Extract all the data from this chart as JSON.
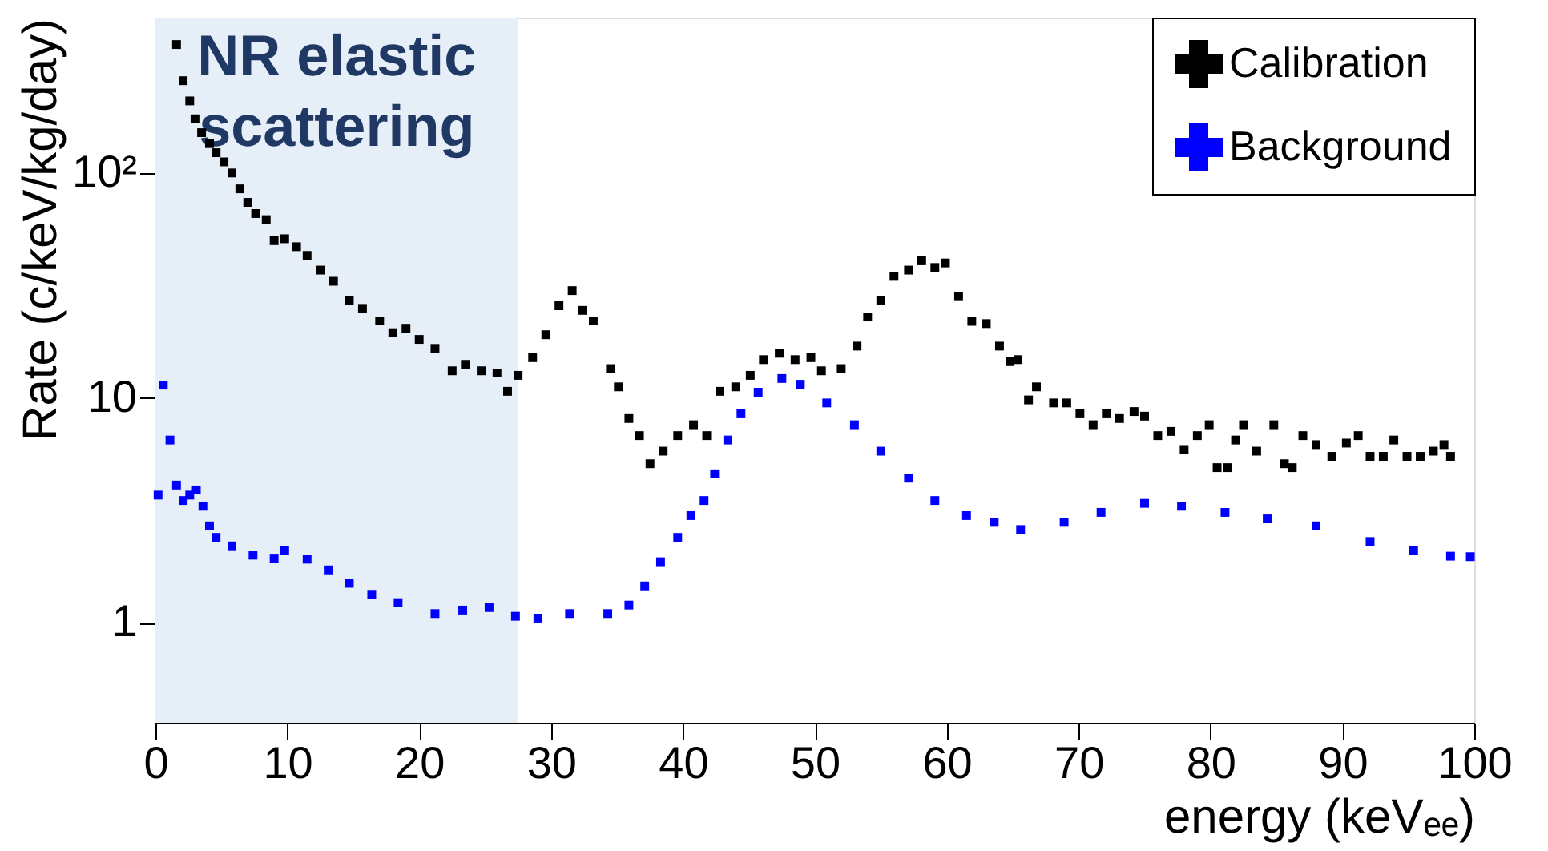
{
  "chart_data": {
    "type": "scatter",
    "xlabel": "energy (keVₑₑ)",
    "ylabel": "Rate (c/keV/kg/day)",
    "xlim": [
      0,
      100
    ],
    "xticks": [
      0,
      10,
      20,
      30,
      40,
      50,
      60,
      70,
      80,
      90,
      100
    ],
    "ylim": [
      0.36,
      490
    ],
    "yticks": [
      1,
      10,
      {
        "value": 100,
        "label": "10²"
      }
    ],
    "log": "y",
    "grid": false,
    "legend": "top right",
    "marker": "square",
    "bands": [
      {
        "axis": "x",
        "from": 0,
        "to": 27.5,
        "label": "NR elastic\nscattering",
        "color": "#e6eef8"
      }
    ],
    "series": [
      {
        "name": "Calibration",
        "color": "#000000",
        "x": [
          1.6,
          2.1,
          2.6,
          3.0,
          3.5,
          4.1,
          4.6,
          5.2,
          5.8,
          6.4,
          7.0,
          7.6,
          8.4,
          9.0,
          9.8,
          10.7,
          11.5,
          12.5,
          13.5,
          14.7,
          15.7,
          17.0,
          18.0,
          19.0,
          20.0,
          21.2,
          22.5,
          23.5,
          24.7,
          25.9,
          26.7,
          27.5,
          28.6,
          29.6,
          30.6,
          31.6,
          32.4,
          33.2,
          34.5,
          35.1,
          35.9,
          36.7,
          37.5,
          38.5,
          39.6,
          40.8,
          41.8,
          42.8,
          44.0,
          45.1,
          46.1,
          47.3,
          48.5,
          49.7,
          50.5,
          52.0,
          53.2,
          54.0,
          55.0,
          56.0,
          57.1,
          58.1,
          59.1,
          59.9,
          60.9,
          61.9,
          63.0,
          64.0,
          64.8,
          65.4,
          66.2,
          66.8,
          68.1,
          69.1,
          70.1,
          71.1,
          72.1,
          73.1,
          74.2,
          75.0,
          76.0,
          77.0,
          78.0,
          79.0,
          79.9,
          80.5,
          81.3,
          81.9,
          82.5,
          83.5,
          84.8,
          85.6,
          86.2,
          87.0,
          88.0,
          89.2,
          90.3,
          91.2,
          92.1,
          93.1,
          93.9,
          94.9,
          95.9,
          96.9,
          97.7,
          98.2
        ],
        "values": [
          372,
          257,
          209,
          174,
          151,
          135,
          123,
          112,
          100,
          85,
          74,
          66,
          62,
          50,
          51,
          47,
          43,
          37,
          33,
          27,
          25,
          22,
          19.5,
          20.4,
          18.2,
          16.6,
          13.2,
          14.1,
          13.2,
          12.9,
          10.7,
          12.6,
          15.1,
          19.1,
          25.7,
          30,
          24.5,
          22,
          13.5,
          11.2,
          8.1,
          6.8,
          5.1,
          5.8,
          6.8,
          7.6,
          6.8,
          10.7,
          11.2,
          12.6,
          14.8,
          15.8,
          14.8,
          15.1,
          13.2,
          13.5,
          17,
          22.9,
          27,
          34.7,
          37,
          40.7,
          38,
          39.8,
          28.2,
          21.9,
          21.4,
          17,
          14.5,
          14.8,
          9.8,
          11.2,
          9.5,
          9.5,
          8.5,
          7.6,
          8.5,
          8.1,
          8.7,
          8.3,
          6.8,
          7.1,
          5.9,
          6.8,
          7.6,
          4.9,
          4.9,
          6.5,
          7.6,
          5.8,
          7.6,
          5.1,
          4.9,
          6.8,
          6.2,
          5.5,
          6.3,
          6.8,
          5.5,
          5.5,
          6.5,
          5.5,
          5.5,
          5.8,
          6.2,
          5.5
        ]
      },
      {
        "name": "Background",
        "color": "#0000ff",
        "x": [
          0.2,
          0.6,
          1.1,
          1.6,
          2.1,
          2.6,
          3.1,
          3.6,
          4.1,
          4.6,
          5.8,
          7.4,
          9.0,
          9.8,
          11.5,
          13.1,
          14.7,
          16.4,
          18.4,
          21.2,
          23.3,
          25.3,
          27.3,
          29.0,
          31.4,
          34.3,
          35.9,
          37.1,
          38.3,
          39.6,
          40.6,
          41.6,
          42.4,
          43.4,
          44.4,
          45.7,
          47.5,
          48.9,
          50.9,
          53.0,
          55.0,
          57.1,
          59.1,
          61.5,
          63.6,
          65.6,
          68.9,
          71.7,
          75.0,
          77.8,
          81.1,
          84.3,
          88.0,
          92.1,
          95.4,
          98.2,
          99.7
        ],
        "values": [
          3.7,
          11.4,
          6.5,
          4.1,
          3.5,
          3.7,
          3.9,
          3.3,
          2.7,
          2.4,
          2.2,
          2.0,
          1.94,
          2.1,
          1.92,
          1.72,
          1.5,
          1.34,
          1.23,
          1.1,
          1.14,
          1.17,
          1.07,
          1.05,
          1.1,
          1.1,
          1.2,
          1.46,
          1.87,
          2.4,
          3.0,
          3.5,
          4.6,
          6.5,
          8.5,
          10.6,
          12.2,
          11.5,
          9.5,
          7.6,
          5.8,
          4.4,
          3.5,
          3.0,
          2.8,
          2.6,
          2.8,
          3.1,
          3.4,
          3.3,
          3.1,
          2.9,
          2.7,
          2.3,
          2.1,
          1.98,
          1.97
        ]
      }
    ]
  }
}
